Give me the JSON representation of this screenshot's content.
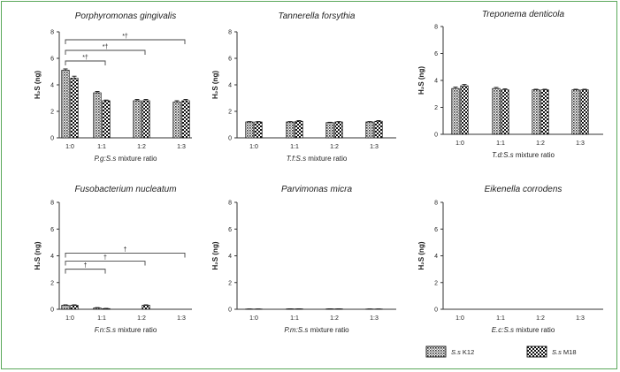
{
  "figure": {
    "legend": [
      {
        "species": "S.s",
        "strain": "K12",
        "pattern": "dots"
      },
      {
        "species": "S.s",
        "strain": "M18",
        "pattern": "checker"
      }
    ]
  },
  "chart_data": [
    {
      "type": "bar",
      "title": "Porphyromonas gingivalis",
      "ylabel": "H2S (ng)",
      "xlabel_abbr": "P.g:S.s",
      "xlabel_suffix": " mixture ratio",
      "ylim": [
        0,
        8
      ],
      "yticks": [
        0,
        2,
        4,
        6,
        8
      ],
      "categories": [
        "1:0",
        "1:1",
        "1:2",
        "1:3"
      ],
      "series": [
        {
          "name": "S.s K12",
          "values": [
            5.1,
            3.4,
            2.8,
            2.7
          ],
          "errors": [
            0.1,
            0.1,
            0.1,
            0.1
          ]
        },
        {
          "name": "S.s M18",
          "values": [
            4.5,
            2.8,
            2.8,
            2.8
          ],
          "errors": [
            0.15,
            0.05,
            0.1,
            0.1
          ]
        }
      ],
      "significance": [
        {
          "from": "1:0",
          "to": "1:1",
          "label": "*†",
          "level": 5.8
        },
        {
          "from": "1:0",
          "to": "1:2",
          "label": "*†",
          "level": 6.6
        },
        {
          "from": "1:0",
          "to": "1:3",
          "label": "*†",
          "level": 7.4
        }
      ]
    },
    {
      "type": "bar",
      "title": "Tannerella forsythia",
      "ylabel": "H2S (ng)",
      "xlabel_abbr": "T.f:S.s",
      "xlabel_suffix": " mixture ratio",
      "ylim": [
        0,
        8
      ],
      "yticks": [
        0,
        2,
        4,
        6,
        8
      ],
      "categories": [
        "1:0",
        "1:1",
        "1:2",
        "1:3"
      ],
      "series": [
        {
          "name": "S.s K12",
          "values": [
            1.2,
            1.2,
            1.15,
            1.2
          ],
          "errors": [
            0.03,
            0.03,
            0.03,
            0.03
          ]
        },
        {
          "name": "S.s M18",
          "values": [
            1.2,
            1.25,
            1.2,
            1.25
          ],
          "errors": [
            0.03,
            0.05,
            0.03,
            0.05
          ]
        }
      ],
      "significance": []
    },
    {
      "type": "bar",
      "title": "Treponema denticola",
      "ylabel": "H2S (ng)",
      "xlabel_abbr": "T.d:S.s",
      "xlabel_suffix": " mixture ratio",
      "ylim": [
        0,
        8
      ],
      "yticks": [
        0,
        2,
        4,
        6,
        8
      ],
      "categories": [
        "1:0",
        "1:1",
        "1:2",
        "1:3"
      ],
      "series": [
        {
          "name": "S.s K12",
          "values": [
            3.4,
            3.4,
            3.3,
            3.3
          ],
          "errors": [
            0.1,
            0.08,
            0.05,
            0.05
          ]
        },
        {
          "name": "S.s M18",
          "values": [
            3.6,
            3.3,
            3.3,
            3.3
          ],
          "errors": [
            0.1,
            0.08,
            0.05,
            0.05
          ]
        }
      ],
      "significance": []
    },
    {
      "type": "bar",
      "title": "Fusobacterium nucleatum",
      "ylabel": "H2S (ng)",
      "xlabel_abbr": "F.n:S.s",
      "xlabel_suffix": " mixture ratio",
      "ylim": [
        0,
        8
      ],
      "yticks": [
        0,
        2,
        4,
        6,
        8
      ],
      "categories": [
        "1:0",
        "1:1",
        "1:2",
        "1:3"
      ],
      "series": [
        {
          "name": "S.s K12",
          "values": [
            0.3,
            0.1,
            0.0,
            0.0
          ],
          "errors": [
            0.03,
            0.03,
            0.0,
            0.0
          ]
        },
        {
          "name": "S.s M18",
          "values": [
            0.3,
            0.05,
            0.3,
            0.0
          ],
          "errors": [
            0.03,
            0.02,
            0.03,
            0.0
          ]
        }
      ],
      "significance": [
        {
          "from": "1:0",
          "to": "1:1",
          "label": "†",
          "level": 3.0
        },
        {
          "from": "1:0",
          "to": "1:2",
          "label": "†",
          "level": 3.6
        },
        {
          "from": "1:0",
          "to": "1:3",
          "label": "†",
          "level": 4.2
        }
      ]
    },
    {
      "type": "bar",
      "title": "Parvimonas micra",
      "ylabel": "H2S (ng)",
      "xlabel_abbr": "P.m:S.s",
      "xlabel_suffix": " mixture ratio",
      "ylim": [
        0,
        8
      ],
      "yticks": [
        0,
        2,
        4,
        6,
        8
      ],
      "categories": [
        "1:0",
        "1:1",
        "1:2",
        "1:3"
      ],
      "series": [
        {
          "name": "S.s K12",
          "values": [
            0.02,
            0.03,
            0.03,
            0.02
          ],
          "errors": [
            0.01,
            0.01,
            0.01,
            0.01
          ]
        },
        {
          "name": "S.s M18",
          "values": [
            0.02,
            0.03,
            0.03,
            0.02
          ],
          "errors": [
            0.01,
            0.01,
            0.01,
            0.01
          ]
        }
      ],
      "significance": []
    },
    {
      "type": "bar",
      "title": "Eikenella corrodens",
      "ylabel": "H2S (ng)",
      "xlabel_abbr": "E.c:S.s",
      "xlabel_suffix": " mixture ratio",
      "ylim": [
        0,
        8
      ],
      "yticks": [
        0,
        2,
        4,
        6,
        8
      ],
      "categories": [
        "1:0",
        "1:1",
        "1:2",
        "1:3"
      ],
      "series": [
        {
          "name": "S.s K12",
          "values": [
            0,
            0,
            0,
            0
          ],
          "errors": [
            0,
            0,
            0,
            0
          ]
        },
        {
          "name": "S.s M18",
          "values": [
            0,
            0,
            0,
            0
          ],
          "errors": [
            0,
            0,
            0,
            0
          ]
        }
      ],
      "significance": []
    }
  ]
}
